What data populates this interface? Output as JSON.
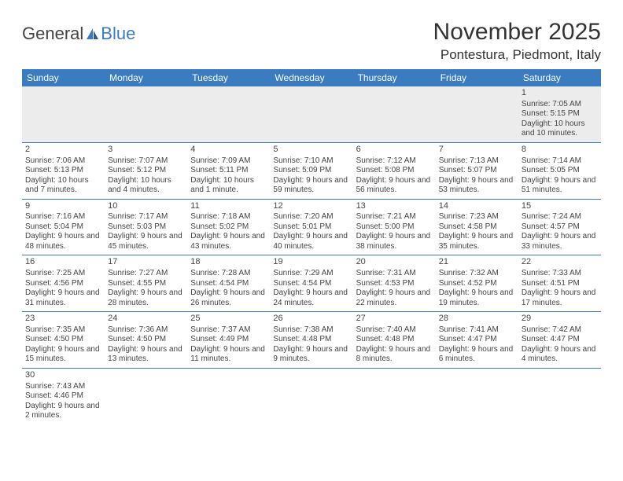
{
  "logo": {
    "text1": "General",
    "text2": "Blue"
  },
  "title": "November 2025",
  "location": "Pontestura, Piedmont, Italy",
  "colors": {
    "header_bg": "#3b7bbf",
    "row_alt": "#ececec",
    "border": "#3b7bbf"
  },
  "dayHeaders": [
    "Sunday",
    "Monday",
    "Tuesday",
    "Wednesday",
    "Thursday",
    "Friday",
    "Saturday"
  ],
  "weeks": [
    [
      null,
      null,
      null,
      null,
      null,
      null,
      {
        "n": "1",
        "sr": "Sunrise: 7:05 AM",
        "ss": "Sunset: 5:15 PM",
        "dl": "Daylight: 10 hours and 10 minutes."
      }
    ],
    [
      {
        "n": "2",
        "sr": "Sunrise: 7:06 AM",
        "ss": "Sunset: 5:13 PM",
        "dl": "Daylight: 10 hours and 7 minutes."
      },
      {
        "n": "3",
        "sr": "Sunrise: 7:07 AM",
        "ss": "Sunset: 5:12 PM",
        "dl": "Daylight: 10 hours and 4 minutes."
      },
      {
        "n": "4",
        "sr": "Sunrise: 7:09 AM",
        "ss": "Sunset: 5:11 PM",
        "dl": "Daylight: 10 hours and 1 minute."
      },
      {
        "n": "5",
        "sr": "Sunrise: 7:10 AM",
        "ss": "Sunset: 5:09 PM",
        "dl": "Daylight: 9 hours and 59 minutes."
      },
      {
        "n": "6",
        "sr": "Sunrise: 7:12 AM",
        "ss": "Sunset: 5:08 PM",
        "dl": "Daylight: 9 hours and 56 minutes."
      },
      {
        "n": "7",
        "sr": "Sunrise: 7:13 AM",
        "ss": "Sunset: 5:07 PM",
        "dl": "Daylight: 9 hours and 53 minutes."
      },
      {
        "n": "8",
        "sr": "Sunrise: 7:14 AM",
        "ss": "Sunset: 5:05 PM",
        "dl": "Daylight: 9 hours and 51 minutes."
      }
    ],
    [
      {
        "n": "9",
        "sr": "Sunrise: 7:16 AM",
        "ss": "Sunset: 5:04 PM",
        "dl": "Daylight: 9 hours and 48 minutes."
      },
      {
        "n": "10",
        "sr": "Sunrise: 7:17 AM",
        "ss": "Sunset: 5:03 PM",
        "dl": "Daylight: 9 hours and 45 minutes."
      },
      {
        "n": "11",
        "sr": "Sunrise: 7:18 AM",
        "ss": "Sunset: 5:02 PM",
        "dl": "Daylight: 9 hours and 43 minutes."
      },
      {
        "n": "12",
        "sr": "Sunrise: 7:20 AM",
        "ss": "Sunset: 5:01 PM",
        "dl": "Daylight: 9 hours and 40 minutes."
      },
      {
        "n": "13",
        "sr": "Sunrise: 7:21 AM",
        "ss": "Sunset: 5:00 PM",
        "dl": "Daylight: 9 hours and 38 minutes."
      },
      {
        "n": "14",
        "sr": "Sunrise: 7:23 AM",
        "ss": "Sunset: 4:58 PM",
        "dl": "Daylight: 9 hours and 35 minutes."
      },
      {
        "n": "15",
        "sr": "Sunrise: 7:24 AM",
        "ss": "Sunset: 4:57 PM",
        "dl": "Daylight: 9 hours and 33 minutes."
      }
    ],
    [
      {
        "n": "16",
        "sr": "Sunrise: 7:25 AM",
        "ss": "Sunset: 4:56 PM",
        "dl": "Daylight: 9 hours and 31 minutes."
      },
      {
        "n": "17",
        "sr": "Sunrise: 7:27 AM",
        "ss": "Sunset: 4:55 PM",
        "dl": "Daylight: 9 hours and 28 minutes."
      },
      {
        "n": "18",
        "sr": "Sunrise: 7:28 AM",
        "ss": "Sunset: 4:54 PM",
        "dl": "Daylight: 9 hours and 26 minutes."
      },
      {
        "n": "19",
        "sr": "Sunrise: 7:29 AM",
        "ss": "Sunset: 4:54 PM",
        "dl": "Daylight: 9 hours and 24 minutes."
      },
      {
        "n": "20",
        "sr": "Sunrise: 7:31 AM",
        "ss": "Sunset: 4:53 PM",
        "dl": "Daylight: 9 hours and 22 minutes."
      },
      {
        "n": "21",
        "sr": "Sunrise: 7:32 AM",
        "ss": "Sunset: 4:52 PM",
        "dl": "Daylight: 9 hours and 19 minutes."
      },
      {
        "n": "22",
        "sr": "Sunrise: 7:33 AM",
        "ss": "Sunset: 4:51 PM",
        "dl": "Daylight: 9 hours and 17 minutes."
      }
    ],
    [
      {
        "n": "23",
        "sr": "Sunrise: 7:35 AM",
        "ss": "Sunset: 4:50 PM",
        "dl": "Daylight: 9 hours and 15 minutes."
      },
      {
        "n": "24",
        "sr": "Sunrise: 7:36 AM",
        "ss": "Sunset: 4:50 PM",
        "dl": "Daylight: 9 hours and 13 minutes."
      },
      {
        "n": "25",
        "sr": "Sunrise: 7:37 AM",
        "ss": "Sunset: 4:49 PM",
        "dl": "Daylight: 9 hours and 11 minutes."
      },
      {
        "n": "26",
        "sr": "Sunrise: 7:38 AM",
        "ss": "Sunset: 4:48 PM",
        "dl": "Daylight: 9 hours and 9 minutes."
      },
      {
        "n": "27",
        "sr": "Sunrise: 7:40 AM",
        "ss": "Sunset: 4:48 PM",
        "dl": "Daylight: 9 hours and 8 minutes."
      },
      {
        "n": "28",
        "sr": "Sunrise: 7:41 AM",
        "ss": "Sunset: 4:47 PM",
        "dl": "Daylight: 9 hours and 6 minutes."
      },
      {
        "n": "29",
        "sr": "Sunrise: 7:42 AM",
        "ss": "Sunset: 4:47 PM",
        "dl": "Daylight: 9 hours and 4 minutes."
      }
    ],
    [
      {
        "n": "30",
        "sr": "Sunrise: 7:43 AM",
        "ss": "Sunset: 4:46 PM",
        "dl": "Daylight: 9 hours and 2 minutes."
      },
      null,
      null,
      null,
      null,
      null,
      null
    ]
  ]
}
